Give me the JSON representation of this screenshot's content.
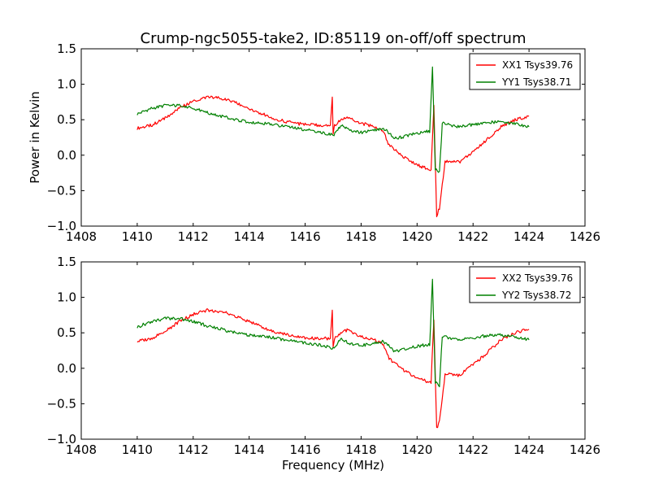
{
  "title": "Crump-ngc5055-take2, ID:85119 on-off/off spectrum",
  "chart_data": [
    {
      "type": "line",
      "ylabel": "Power in Kelvin",
      "xlabel": "",
      "xlim": [
        1408,
        1426
      ],
      "ylim": [
        -1.0,
        1.5
      ],
      "xticks": [
        "1408",
        "1410",
        "1412",
        "1414",
        "1416",
        "1418",
        "1420",
        "1422",
        "1424",
        "1426"
      ],
      "yticks": [
        "−1.0",
        "−0.5",
        "0.0",
        "0.5",
        "1.0",
        "1.5"
      ],
      "grid": false,
      "legend_position": "top-right",
      "series": [
        {
          "name": "XX1 Tsys39.76",
          "color": "#ff0000",
          "x": [
            1410,
            1410.5,
            1411,
            1411.5,
            1412,
            1412.5,
            1413,
            1413.5,
            1414,
            1414.5,
            1415,
            1415.5,
            1416,
            1416.5,
            1416.9,
            1416.97,
            1417.0,
            1417.05,
            1417.2,
            1417.5,
            1418,
            1418.5,
            1418.8,
            1419.0,
            1419.5,
            1420.0,
            1420.3,
            1420.5,
            1420.6,
            1420.7,
            1420.8,
            1421.0,
            1421.5,
            1422.0,
            1422.5,
            1423.0,
            1423.5,
            1424.0
          ],
          "y": [
            0.38,
            0.42,
            0.52,
            0.66,
            0.76,
            0.82,
            0.8,
            0.74,
            0.66,
            0.58,
            0.5,
            0.46,
            0.43,
            0.42,
            0.42,
            0.82,
            0.3,
            0.42,
            0.48,
            0.54,
            0.45,
            0.4,
            0.33,
            0.14,
            -0.02,
            -0.14,
            -0.18,
            -0.2,
            0.7,
            -0.85,
            -0.75,
            -0.08,
            -0.1,
            0.05,
            0.22,
            0.4,
            0.5,
            0.55
          ]
        },
        {
          "name": "YY1 Tsys38.71",
          "color": "#008000",
          "x": [
            1410,
            1410.5,
            1411,
            1411.5,
            1412,
            1412.5,
            1413,
            1413.5,
            1414,
            1414.5,
            1415,
            1415.5,
            1416,
            1416.5,
            1417.0,
            1417.3,
            1417.6,
            1418,
            1418.5,
            1418.8,
            1419.2,
            1419.5,
            1420.0,
            1420.45,
            1420.55,
            1420.65,
            1420.8,
            1420.9,
            1421.5,
            1422.0,
            1422.5,
            1423.0,
            1423.5,
            1424.0
          ],
          "y": [
            0.58,
            0.66,
            0.7,
            0.7,
            0.66,
            0.6,
            0.55,
            0.5,
            0.47,
            0.45,
            0.42,
            0.39,
            0.36,
            0.33,
            0.28,
            0.42,
            0.34,
            0.32,
            0.36,
            0.38,
            0.24,
            0.26,
            0.31,
            0.34,
            1.25,
            -0.2,
            -0.25,
            0.45,
            0.4,
            0.43,
            0.46,
            0.47,
            0.44,
            0.4
          ]
        }
      ]
    },
    {
      "type": "line",
      "ylabel": "",
      "xlabel": "Frequency (MHz)",
      "xlim": [
        1408,
        1426
      ],
      "ylim": [
        -1.0,
        1.5
      ],
      "xticks": [
        "1408",
        "1410",
        "1412",
        "1414",
        "1416",
        "1418",
        "1420",
        "1422",
        "1424",
        "1426"
      ],
      "yticks": [
        "−1.0",
        "−0.5",
        "0.0",
        "0.5",
        "1.0",
        "1.5"
      ],
      "grid": false,
      "legend_position": "top-right",
      "series": [
        {
          "name": "XX2 Tsys39.76",
          "color": "#ff0000",
          "x": [
            1410,
            1410.5,
            1411,
            1411.5,
            1412,
            1412.5,
            1413,
            1413.5,
            1414,
            1414.5,
            1415,
            1415.5,
            1416,
            1416.5,
            1416.9,
            1416.97,
            1417.0,
            1417.05,
            1417.2,
            1417.5,
            1418,
            1418.5,
            1418.8,
            1419.0,
            1419.5,
            1420.0,
            1420.3,
            1420.5,
            1420.6,
            1420.7,
            1420.8,
            1421.0,
            1421.5,
            1422.0,
            1422.5,
            1423.0,
            1423.5,
            1424.0
          ],
          "y": [
            0.38,
            0.42,
            0.52,
            0.66,
            0.76,
            0.82,
            0.8,
            0.74,
            0.66,
            0.58,
            0.5,
            0.46,
            0.43,
            0.42,
            0.42,
            0.82,
            0.3,
            0.42,
            0.48,
            0.54,
            0.45,
            0.4,
            0.33,
            0.14,
            -0.02,
            -0.14,
            -0.18,
            -0.2,
            0.7,
            -0.85,
            -0.75,
            -0.08,
            -0.1,
            0.05,
            0.22,
            0.4,
            0.5,
            0.55
          ]
        },
        {
          "name": "YY2 Tsys38.72",
          "color": "#008000",
          "x": [
            1410,
            1410.5,
            1411,
            1411.5,
            1412,
            1412.5,
            1413,
            1413.5,
            1414,
            1414.5,
            1415,
            1415.5,
            1416,
            1416.5,
            1417.0,
            1417.3,
            1417.6,
            1418,
            1418.5,
            1418.8,
            1419.2,
            1419.5,
            1420.0,
            1420.45,
            1420.55,
            1420.65,
            1420.8,
            1420.9,
            1421.5,
            1422.0,
            1422.5,
            1423.0,
            1423.5,
            1424.0
          ],
          "y": [
            0.58,
            0.66,
            0.7,
            0.7,
            0.66,
            0.6,
            0.55,
            0.5,
            0.47,
            0.45,
            0.42,
            0.39,
            0.36,
            0.33,
            0.28,
            0.42,
            0.34,
            0.32,
            0.36,
            0.38,
            0.24,
            0.26,
            0.31,
            0.34,
            1.25,
            -0.2,
            -0.25,
            0.45,
            0.4,
            0.43,
            0.46,
            0.47,
            0.44,
            0.4
          ]
        }
      ]
    }
  ]
}
